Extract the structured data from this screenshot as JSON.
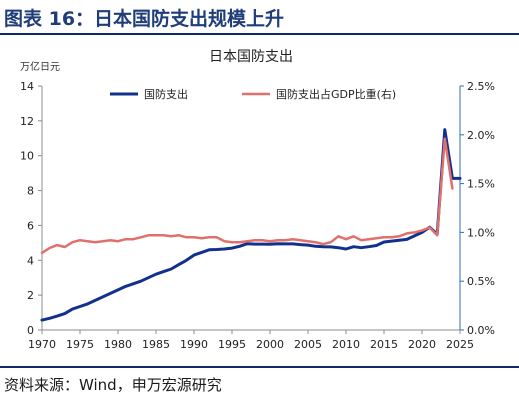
{
  "figure_title": "图表 16：日本国防支出规模上升",
  "source": "资料来源：Wind，申万宏源研究",
  "colors": {
    "title": "#1f3d78",
    "rule": "#0d2a6b",
    "spending": "#12318c",
    "ratio": "#e0706c",
    "axis": "#8c8c8c",
    "right_axis": "#2b6fb5"
  },
  "chart_data": {
    "type": "line",
    "title": "日本国防支出",
    "left_unit": "万亿日元",
    "xlabel": "",
    "ylabel": "",
    "x_ticks": [
      "1970",
      "1975",
      "1980",
      "1985",
      "1990",
      "1995",
      "2000",
      "2005",
      "2010",
      "2015",
      "2020",
      "2025"
    ],
    "xlim": [
      1970,
      2025
    ],
    "left_ticks": [
      "0",
      "2",
      "4",
      "6",
      "8",
      "10",
      "12",
      "14"
    ],
    "left_ylim": [
      0,
      14
    ],
    "right_ticks": [
      "0.0%",
      "0.5%",
      "1.0%",
      "1.5%",
      "2.0%",
      "2.5%"
    ],
    "right_ylim": [
      0,
      2.5
    ],
    "grid": false,
    "legend_position": "top",
    "series": [
      {
        "name": "国防支出",
        "axis": "left",
        "x": [
          1970,
          1971,
          1972,
          1973,
          1974,
          1975,
          1976,
          1977,
          1978,
          1979,
          1980,
          1981,
          1982,
          1983,
          1984,
          1985,
          1986,
          1987,
          1988,
          1989,
          1990,
          1991,
          1992,
          1993,
          1994,
          1995,
          1996,
          1997,
          1998,
          1999,
          2000,
          2001,
          2002,
          2003,
          2004,
          2005,
          2006,
          2007,
          2008,
          2009,
          2010,
          2011,
          2012,
          2013,
          2014,
          2015,
          2016,
          2017,
          2018,
          2019,
          2020,
          2021,
          2022,
          2023,
          2024,
          2025
        ],
        "values": [
          0.57,
          0.67,
          0.8,
          0.94,
          1.2,
          1.35,
          1.5,
          1.7,
          1.9,
          2.1,
          2.3,
          2.5,
          2.65,
          2.8,
          3.0,
          3.2,
          3.35,
          3.5,
          3.75,
          4.0,
          4.3,
          4.45,
          4.6,
          4.62,
          4.65,
          4.7,
          4.8,
          4.95,
          4.93,
          4.93,
          4.92,
          4.95,
          4.94,
          4.94,
          4.9,
          4.87,
          4.8,
          4.78,
          4.77,
          4.72,
          4.65,
          4.78,
          4.72,
          4.78,
          4.85,
          5.05,
          5.1,
          5.15,
          5.2,
          5.4,
          5.6,
          5.9,
          5.5,
          11.5,
          8.7,
          8.7
        ]
      },
      {
        "name": "国防支出占GDP比重(右)",
        "axis": "right",
        "x": [
          1970,
          1971,
          1972,
          1973,
          1974,
          1975,
          1976,
          1977,
          1978,
          1979,
          1980,
          1981,
          1982,
          1983,
          1984,
          1985,
          1986,
          1987,
          1988,
          1989,
          1990,
          1991,
          1992,
          1993,
          1994,
          1995,
          1996,
          1997,
          1998,
          1999,
          2000,
          2001,
          2002,
          2003,
          2004,
          2005,
          2006,
          2007,
          2008,
          2009,
          2010,
          2011,
          2012,
          2013,
          2014,
          2015,
          2016,
          2017,
          2018,
          2019,
          2020,
          2021,
          2022,
          2023,
          2024
        ],
        "values": [
          0.79,
          0.84,
          0.87,
          0.85,
          0.9,
          0.92,
          0.91,
          0.9,
          0.91,
          0.92,
          0.91,
          0.93,
          0.93,
          0.95,
          0.97,
          0.97,
          0.97,
          0.96,
          0.97,
          0.95,
          0.95,
          0.94,
          0.95,
          0.95,
          0.91,
          0.9,
          0.9,
          0.91,
          0.92,
          0.92,
          0.91,
          0.92,
          0.92,
          0.93,
          0.92,
          0.91,
          0.9,
          0.88,
          0.9,
          0.96,
          0.93,
          0.96,
          0.92,
          0.93,
          0.94,
          0.95,
          0.95,
          0.96,
          0.99,
          1.0,
          1.02,
          1.05,
          0.97,
          1.96,
          1.45
        ]
      }
    ]
  }
}
